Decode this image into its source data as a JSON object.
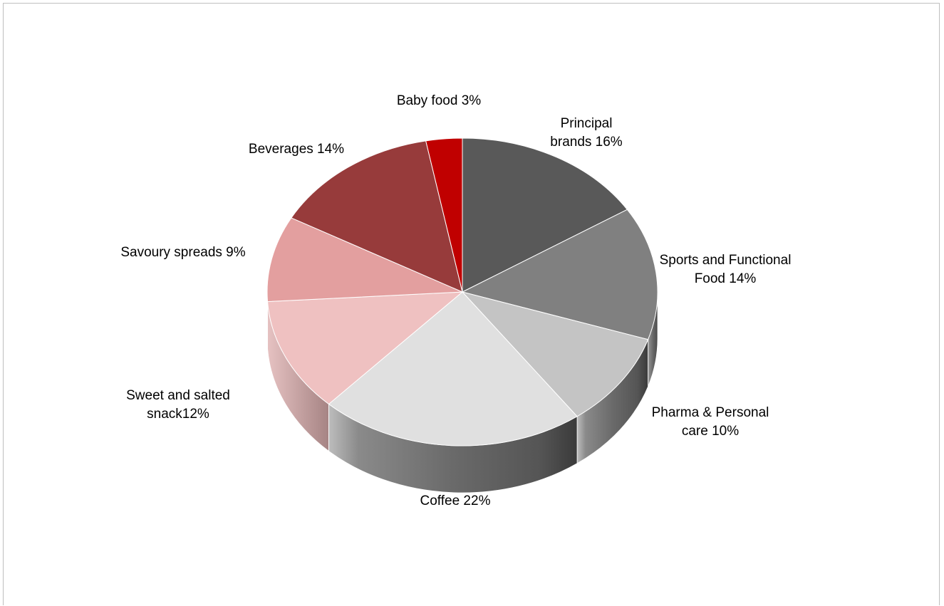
{
  "chart_data": {
    "type": "pie",
    "title": "",
    "slices": [
      {
        "label": [
          "Principal",
          "brands 16%"
        ],
        "value": 16,
        "color": "#595959"
      },
      {
        "label": [
          "Sports and Functional",
          "Food 14%"
        ],
        "value": 14,
        "color": "#808080"
      },
      {
        "label": [
          "Pharma & Personal",
          "care 10%"
        ],
        "value": 10,
        "color": "#c4c4c4"
      },
      {
        "label": [
          "Coffee 22%"
        ],
        "value": 22,
        "color": "#e0e0e0"
      },
      {
        "label": [
          "Sweet and salted",
          "snack12%"
        ],
        "value": 12,
        "color": "#efc1c1"
      },
      {
        "label": [
          "Savoury spreads 9%"
        ],
        "value": 9,
        "color": "#e39f9f"
      },
      {
        "label": [
          "Beverages 14%"
        ],
        "value": 14,
        "color": "#973b3b"
      },
      {
        "label": [
          "Baby food 3%"
        ],
        "value": 3,
        "color": "#c00000"
      }
    ],
    "style": "3d",
    "legend": "none"
  }
}
